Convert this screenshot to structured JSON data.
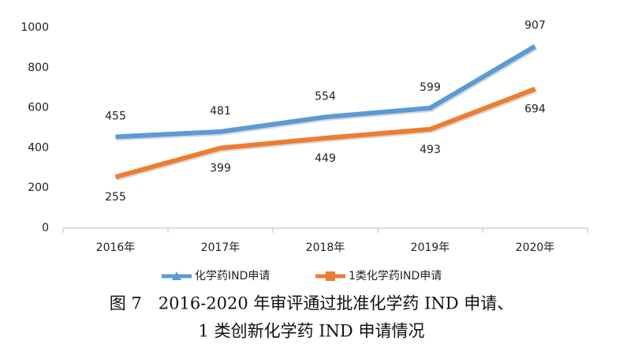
{
  "chart_data": {
    "type": "line",
    "categories": [
      "2016年",
      "2017年",
      "2018年",
      "2019年",
      "2020年"
    ],
    "series": [
      {
        "name": "化学药IND申请",
        "color": "#5b9bd5",
        "values": [
          455,
          481,
          554,
          599,
          907
        ]
      },
      {
        "name": "1类化学药IND申请",
        "color": "#ed7d31",
        "values": [
          255,
          399,
          449,
          493,
          694
        ]
      }
    ],
    "ylim": [
      0,
      1000
    ],
    "yticks": [
      0,
      200,
      400,
      600,
      800,
      1000
    ],
    "grid": false,
    "legend": "bottom",
    "caption": [
      "图 7　2016-2020 年审评通过批准化学药 IND 申请、",
      "1 类创新化学药 IND 申请情况"
    ]
  }
}
